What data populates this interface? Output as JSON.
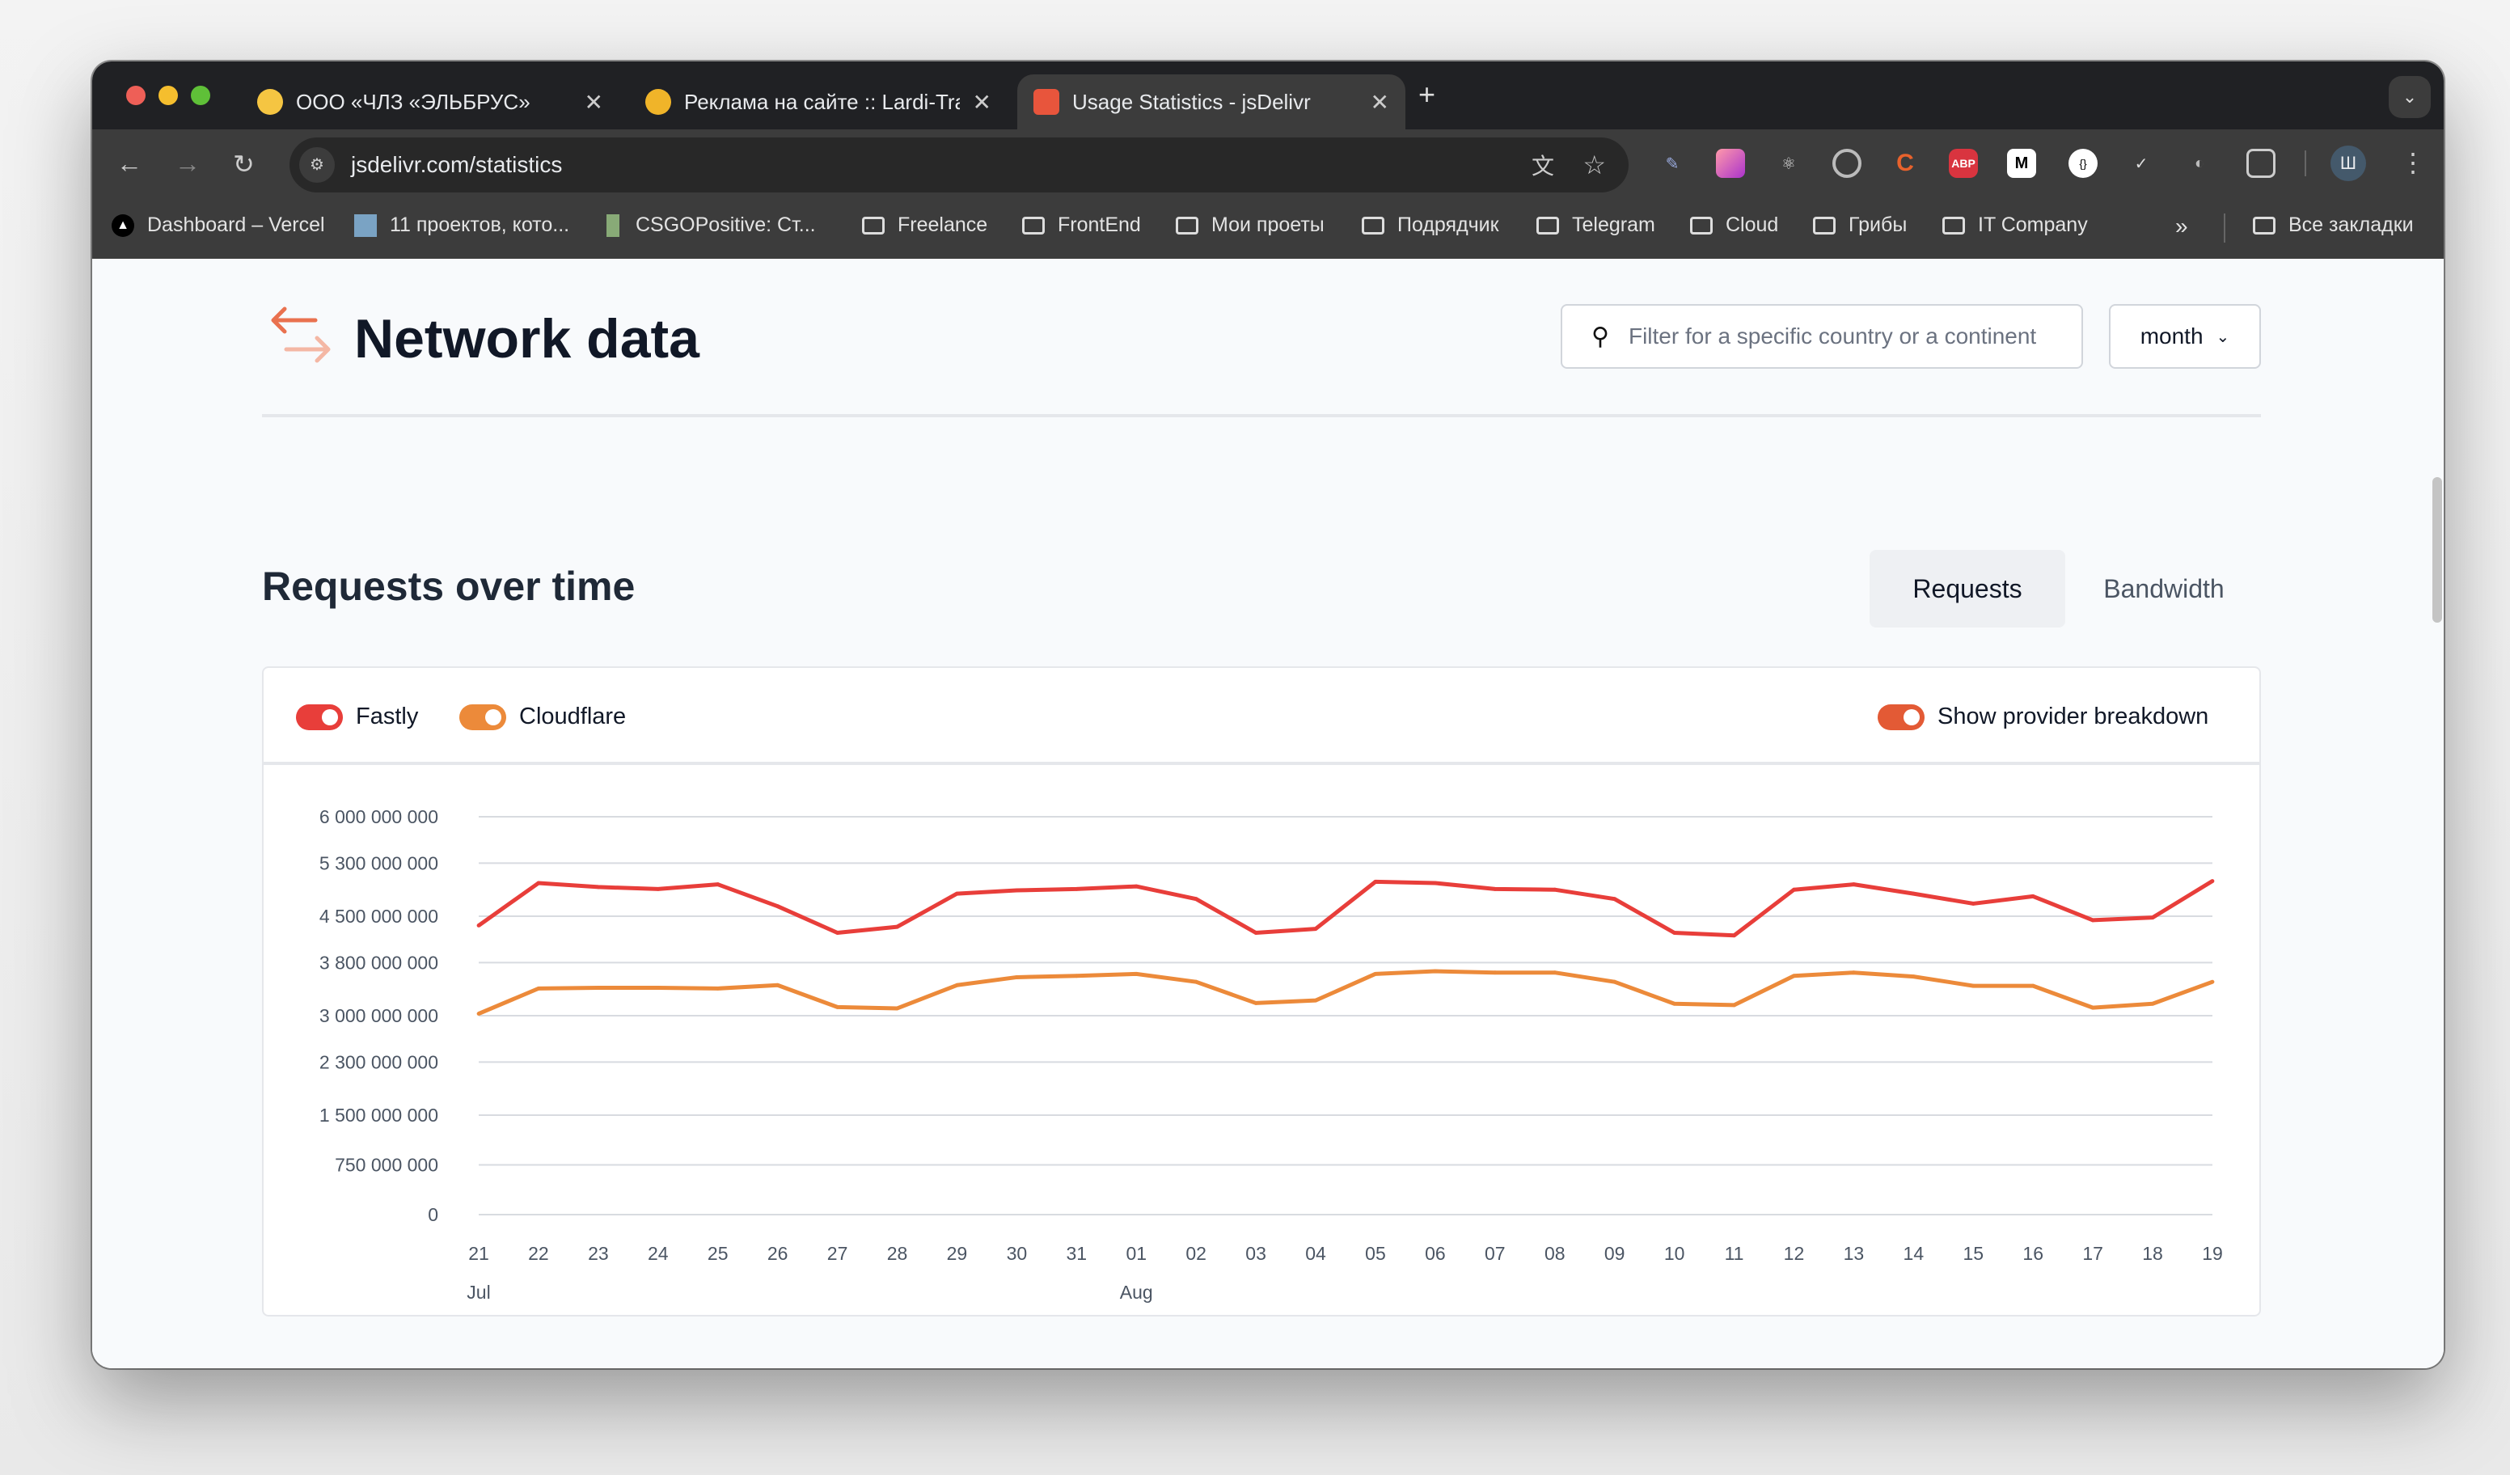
{
  "browser": {
    "tabs": [
      {
        "title": "ООО «ЧЛЗ «ЭЛЬБРУС»",
        "favicon_color": "#f5c542"
      },
      {
        "title": "Реклама на сайте :: Lardi-Trans",
        "favicon_color": "#f0b429"
      },
      {
        "title": "Usage Statistics - jsDelivr",
        "favicon_color": "#e8553c",
        "active": true
      }
    ],
    "new_tab": "+",
    "address": "jsdelivr.com/statistics",
    "profile_initial": "Ш",
    "bookmarks": [
      "Dashboard – Vercel",
      "11 проектов, кото...",
      "CSGOPositive: Ст...",
      "Freelance",
      "FrontEnd",
      "Мои проеты",
      "Подрядчик",
      "Telegram",
      "Cloud",
      "Грибы",
      "IT Company"
    ],
    "bookmarks_more": "»",
    "all_bookmarks": "Все закладки",
    "extensions": [
      "eyedropper",
      "gradient",
      "react-devtools",
      "target",
      "c-ext",
      "ABP",
      "M-ext",
      "json-ext",
      "check-ext",
      "s-ext",
      "puzzle"
    ]
  },
  "page": {
    "title": "Network data",
    "search_placeholder": "Filter for a specific country or a continent",
    "period": "month",
    "section_title": "Requests over time",
    "tabs": [
      "Requests",
      "Bandwidth"
    ],
    "active_tab": "Requests",
    "legend": {
      "fastly": "Fastly",
      "cloudflare": "Cloudflare",
      "breakdown": "Show provider breakdown"
    }
  },
  "chart_data": {
    "type": "line",
    "x": [
      "21",
      "22",
      "23",
      "24",
      "25",
      "26",
      "27",
      "28",
      "29",
      "30",
      "31",
      "01",
      "02",
      "03",
      "04",
      "05",
      "06",
      "07",
      "08",
      "09",
      "10",
      "11",
      "12",
      "13",
      "14",
      "15",
      "16",
      "17",
      "18",
      "19"
    ],
    "month_labels": [
      {
        "index": 0,
        "label": "Jul"
      },
      {
        "index": 11,
        "label": "Aug"
      }
    ],
    "yticks": [
      0,
      750000000,
      1500000000,
      2300000000,
      3000000000,
      3800000000,
      4500000000,
      5300000000,
      6000000000
    ],
    "ytick_labels": [
      "0",
      "750 000 000",
      "1 500 000 000",
      "2 300 000 000",
      "3 000 000 000",
      "3 800 000 000",
      "4 500 000 000",
      "5 300 000 000",
      "6 000 000 000"
    ],
    "ylim": [
      0,
      6000000000
    ],
    "grid": true,
    "series": [
      {
        "name": "Fastly",
        "color": "#e83e3a",
        "values": [
          4.36,
          5.0,
          4.94,
          4.91,
          4.98,
          4.65,
          4.25,
          4.34,
          4.84,
          4.89,
          4.91,
          4.95,
          4.76,
          4.25,
          4.31,
          5.02,
          5.0,
          4.91,
          4.9,
          4.76,
          4.25,
          4.21,
          4.9,
          4.98,
          4.84,
          4.69,
          4.8,
          4.44,
          4.48,
          5.03
        ]
      },
      {
        "name": "Cloudflare",
        "color": "#ec8a3a",
        "values": [
          3.03,
          3.41,
          3.42,
          3.42,
          3.41,
          3.46,
          3.13,
          3.11,
          3.46,
          3.58,
          3.6,
          3.63,
          3.51,
          3.19,
          3.23,
          3.63,
          3.67,
          3.65,
          3.65,
          3.51,
          3.18,
          3.16,
          3.6,
          3.65,
          3.59,
          3.45,
          3.45,
          3.12,
          3.18,
          3.51
        ]
      }
    ],
    "value_unit": "billions"
  }
}
